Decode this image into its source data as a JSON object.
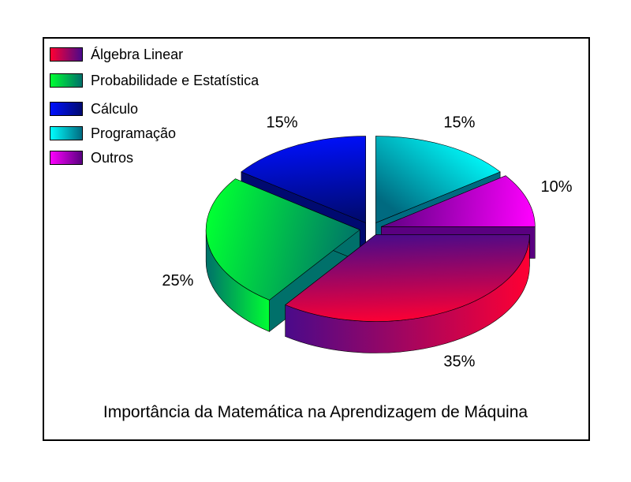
{
  "chart_data": {
    "type": "pie",
    "title": "Importância da Matemática na Aprendizagem de Máquina",
    "legend_position": "top-left",
    "slices": [
      {
        "name": "Álgebra Linear",
        "value": 35,
        "label": "35%",
        "color": "#ff0033",
        "dark": "#4a0a8a"
      },
      {
        "name": "Probabilidade e Estatística",
        "value": 25,
        "label": "25%",
        "color": "#00ff33",
        "dark": "#00706a"
      },
      {
        "name": "Cálculo",
        "value": 15,
        "label": "15%",
        "color": "#0010ff",
        "dark": "#000a70"
      },
      {
        "name": "Programação",
        "value": 15,
        "label": "15%",
        "color": "#00ffff",
        "dark": "#006a80"
      },
      {
        "name": "Outros",
        "value": 10,
        "label": "10%",
        "color": "#ff00ff",
        "dark": "#5a0080"
      }
    ]
  }
}
